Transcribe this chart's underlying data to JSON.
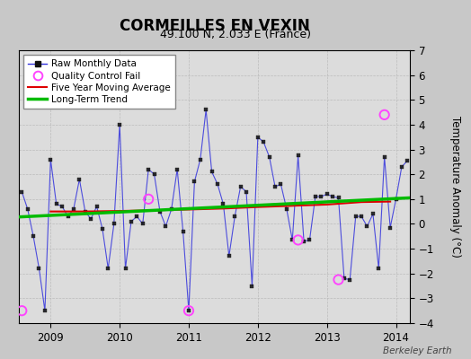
{
  "title": "CORMEILLES EN VEXIN",
  "subtitle": "49.100 N, 2.033 E (France)",
  "ylabel": "Temperature Anomaly (°C)",
  "watermark": "Berkeley Earth",
  "xlim": [
    2008.54,
    2014.2
  ],
  "ylim": [
    -4,
    7
  ],
  "yticks": [
    -4,
    -3,
    -2,
    -1,
    0,
    1,
    2,
    3,
    4,
    5,
    6,
    7
  ],
  "xticks": [
    2009,
    2010,
    2011,
    2012,
    2013,
    2014
  ],
  "bg_color": "#c8c8c8",
  "plot_bg_color": "#dcdcdc",
  "raw_monthly_x": [
    2008.583,
    2008.667,
    2008.75,
    2008.833,
    2008.917,
    2009.0,
    2009.083,
    2009.167,
    2009.25,
    2009.333,
    2009.417,
    2009.5,
    2009.583,
    2009.667,
    2009.75,
    2009.833,
    2009.917,
    2010.0,
    2010.083,
    2010.167,
    2010.25,
    2010.333,
    2010.417,
    2010.5,
    2010.583,
    2010.667,
    2010.75,
    2010.833,
    2010.917,
    2011.0,
    2011.083,
    2011.167,
    2011.25,
    2011.333,
    2011.417,
    2011.5,
    2011.583,
    2011.667,
    2011.75,
    2011.833,
    2011.917,
    2012.0,
    2012.083,
    2012.167,
    2012.25,
    2012.333,
    2012.417,
    2012.5,
    2012.583,
    2012.667,
    2012.75,
    2012.833,
    2012.917,
    2013.0,
    2013.083,
    2013.167,
    2013.25,
    2013.333,
    2013.417,
    2013.5,
    2013.583,
    2013.667,
    2013.75,
    2013.833,
    2013.917,
    2014.0,
    2014.083,
    2014.167
  ],
  "raw_monthly_y": [
    1.3,
    0.6,
    -0.5,
    -1.8,
    -3.5,
    2.6,
    0.8,
    0.7,
    0.3,
    0.6,
    1.8,
    0.5,
    0.2,
    0.7,
    -0.2,
    -1.8,
    0.0,
    4.0,
    -1.8,
    0.1,
    0.3,
    0.0,
    2.2,
    2.0,
    0.5,
    -0.1,
    0.6,
    2.2,
    -0.3,
    -3.5,
    1.7,
    2.6,
    4.6,
    2.1,
    1.6,
    0.8,
    -1.3,
    0.3,
    1.5,
    1.3,
    -2.5,
    3.5,
    3.3,
    2.7,
    1.5,
    1.6,
    0.6,
    -0.65,
    2.75,
    -0.7,
    -0.65,
    1.1,
    1.1,
    1.2,
    1.1,
    1.05,
    -2.2,
    -2.25,
    0.3,
    0.3,
    -0.1,
    0.4,
    -1.8,
    2.7,
    -0.15,
    1.0,
    2.3,
    2.55
  ],
  "qc_fail_x": [
    2008.583,
    2010.417,
    2011.0,
    2012.583,
    2013.167,
    2013.833
  ],
  "qc_fail_y": [
    -3.5,
    1.0,
    -3.5,
    -0.65,
    -2.25,
    4.4
  ],
  "mavg_x": [
    2009.0,
    2009.5,
    2010.0,
    2010.5,
    2011.0,
    2011.5,
    2012.0,
    2012.5,
    2013.0,
    2013.5,
    2013.917
  ],
  "mavg_y": [
    0.5,
    0.5,
    0.52,
    0.55,
    0.58,
    0.62,
    0.68,
    0.73,
    0.78,
    0.88,
    0.9
  ],
  "trend_x": [
    2008.54,
    2014.2
  ],
  "trend_y": [
    0.28,
    1.05
  ],
  "line_color": "#3333dd",
  "dot_color": "#111111",
  "qc_color": "#ff44ff",
  "mavg_color": "#dd0000",
  "trend_color": "#00bb00",
  "grid_color": "#bbbbbb",
  "title_fontsize": 12,
  "subtitle_fontsize": 9,
  "tick_fontsize": 8.5,
  "ylabel_fontsize": 8.5
}
